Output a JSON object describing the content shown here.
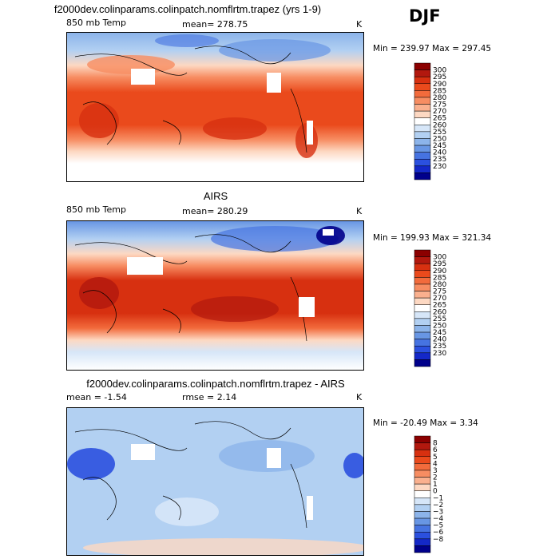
{
  "season": "DJF",
  "panels": [
    {
      "title": "f2000dev.colinparams.colinpatch.nomflrtm.trapez (yrs 1-9)",
      "left_label": "850 mb Temp",
      "center_label": "mean= 278.75",
      "units": "K",
      "minmax": "Min = 239.97 Max = 297.45"
    },
    {
      "title": "AIRS",
      "left_label": "850 mb Temp",
      "center_label": "mean= 280.29",
      "units": "K",
      "minmax": "Min = 199.93 Max = 321.34"
    },
    {
      "title": "f2000dev.colinparams.colinpatch.nomflrtm.trapez - AIRS",
      "left_label": "mean =   -1.54",
      "center_label": "rmse =    2.14",
      "units": "K",
      "minmax": "Min = -20.49 Max =    3.34"
    }
  ],
  "colorbars": [
    {
      "levels": [
        "300",
        "295",
        "290",
        "285",
        "280",
        "275",
        "270",
        "265",
        "260",
        "255",
        "250",
        "245",
        "240",
        "235",
        "230"
      ],
      "colors": [
        "#8b0000",
        "#b2180e",
        "#d73010",
        "#ea4a1c",
        "#f26b3c",
        "#f78d62",
        "#fab08e",
        "#fdd8c2",
        "#ffffff",
        "#d6e6f8",
        "#b2d0f2",
        "#8cb4ea",
        "#6896e4",
        "#4673e1",
        "#2b50df",
        "#1428c8",
        "#00008b"
      ]
    },
    {
      "levels": [
        "300",
        "295",
        "290",
        "285",
        "280",
        "275",
        "270",
        "265",
        "260",
        "255",
        "250",
        "245",
        "240",
        "235",
        "230"
      ],
      "colors": [
        "#8b0000",
        "#b2180e",
        "#d73010",
        "#ea4a1c",
        "#f26b3c",
        "#f78d62",
        "#fab08e",
        "#fdd8c2",
        "#ffffff",
        "#d6e6f8",
        "#b2d0f2",
        "#8cb4ea",
        "#6896e4",
        "#4673e1",
        "#2b50df",
        "#1428c8",
        "#00008b"
      ]
    },
    {
      "levels": [
        "8",
        "6",
        "5",
        "4",
        "3",
        "2",
        "1",
        "0",
        "−1",
        "−2",
        "−3",
        "−4",
        "−5",
        "−6",
        "−8"
      ],
      "colors": [
        "#8b0000",
        "#b2180e",
        "#d73010",
        "#ea4a1c",
        "#f26b3c",
        "#f78d62",
        "#fab08e",
        "#fdd8c2",
        "#ffffff",
        "#d6e6f8",
        "#b2d0f2",
        "#8cb4ea",
        "#6896e4",
        "#4673e1",
        "#2b50df",
        "#1428c8",
        "#00008b"
      ]
    }
  ],
  "chart_data": [
    {
      "type": "heatmap",
      "title": "f2000dev.colinparams.colinpatch.nomflrtm.trapez (yrs 1-9)",
      "variable": "850 mb Temp",
      "units": "K",
      "mean": 278.75,
      "min": 239.97,
      "max": 297.45,
      "contour_levels": [
        230,
        235,
        240,
        245,
        250,
        255,
        260,
        265,
        270,
        275,
        280,
        285,
        290,
        295,
        300
      ]
    },
    {
      "type": "heatmap",
      "title": "AIRS",
      "variable": "850 mb Temp",
      "units": "K",
      "mean": 280.29,
      "min": 199.93,
      "max": 321.34,
      "contour_levels": [
        230,
        235,
        240,
        245,
        250,
        255,
        260,
        265,
        270,
        275,
        280,
        285,
        290,
        295,
        300
      ]
    },
    {
      "type": "heatmap",
      "title": "f2000dev.colinparams.colinpatch.nomflrtm.trapez - AIRS",
      "units": "K",
      "mean": -1.54,
      "rmse": 2.14,
      "min": -20.49,
      "max": 3.34,
      "contour_levels": [
        -8,
        -6,
        -5,
        -4,
        -3,
        -2,
        -1,
        0,
        1,
        2,
        3,
        4,
        5,
        6,
        8
      ]
    }
  ]
}
